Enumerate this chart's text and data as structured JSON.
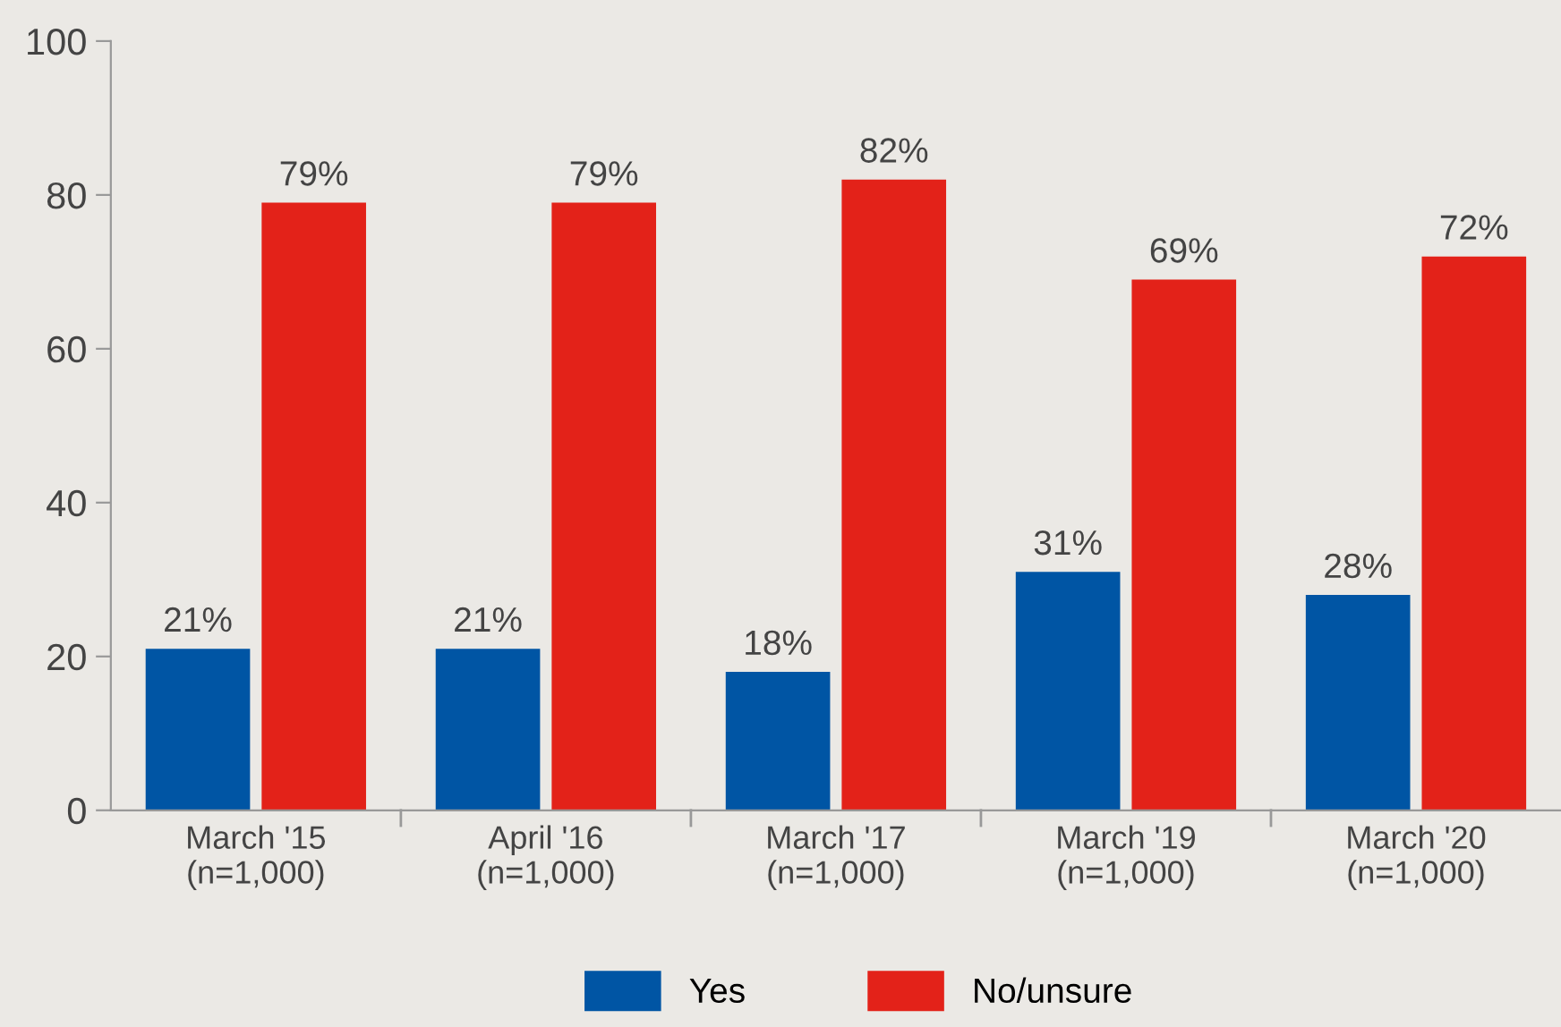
{
  "chart_data": {
    "type": "bar",
    "categories": [
      "March '15\n(n=1,000)",
      "April '16\n(n=1,000)",
      "March '17\n(n=1,000)",
      "March '19\n(n=1,000)",
      "March '20\n(n=1,000)"
    ],
    "series": [
      {
        "name": "Yes",
        "color": "#0055a4",
        "values": [
          21,
          21,
          18,
          31,
          28
        ],
        "value_labels": [
          "21%",
          "21%",
          "18%",
          "31%",
          "28%"
        ]
      },
      {
        "name": "No/unsure",
        "color": "#e32219",
        "values": [
          79,
          79,
          82,
          69,
          72
        ],
        "value_labels": [
          "79%",
          "79%",
          "82%",
          "69%",
          "72%"
        ]
      }
    ],
    "ylim": [
      0,
      100
    ],
    "yticks": [
      0,
      20,
      40,
      60,
      80,
      100
    ],
    "grid": false,
    "legend": "bottom"
  }
}
